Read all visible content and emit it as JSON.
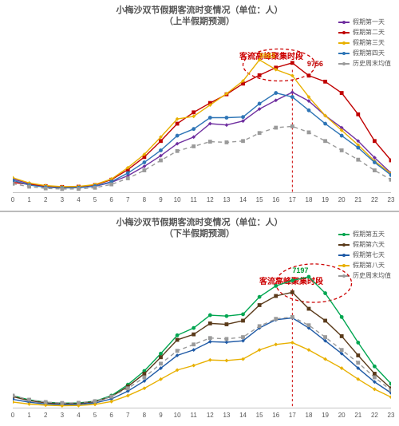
{
  "chart_top": {
    "type": "line",
    "title_line1": "小梅沙双节假期客流时变情况（单位：人）",
    "title_line2": "（上半假期预测）",
    "title_fontsize": 11,
    "title_color": "#555555",
    "background_color": "#ffffff",
    "xaxis": {
      "ticks": [
        0,
        1,
        2,
        3,
        4,
        5,
        6,
        7,
        8,
        9,
        10,
        11,
        12,
        13,
        14,
        15,
        16,
        17,
        18,
        19,
        20,
        21,
        22,
        23
      ],
      "label_fontsize": 8
    },
    "ylim": [
      0,
      11000
    ],
    "peak_annotation": {
      "text": "客流高峰聚集时段",
      "color": "#cc0000",
      "ellipse": {
        "cx_hour": 16.2,
        "cy_value": 9600,
        "rx_hours": 2.2,
        "ry_value": 1200,
        "stroke": "#cc0000",
        "dash": "4,3"
      },
      "vline_hour": 17
    },
    "value_labels": [
      {
        "text": "9983",
        "hour": 15.0,
        "value": 10200,
        "color": "#e8b000"
      },
      {
        "text": "9756",
        "hour": 17.9,
        "value": 9650,
        "color": "#c00000"
      }
    ],
    "series": [
      {
        "name": "假期第一天",
        "color": "#7030a0",
        "marker": "diamond",
        "dash": "none",
        "values": [
          1050,
          700,
          500,
          420,
          420,
          500,
          800,
          1300,
          2000,
          2800,
          3700,
          4200,
          5200,
          5100,
          5400,
          6300,
          6950,
          7550,
          6900,
          5800,
          4900,
          3900,
          2650,
          1500
        ]
      },
      {
        "name": "假期第二天",
        "color": "#c00000",
        "marker": "square",
        "dash": "none",
        "values": [
          800,
          650,
          520,
          460,
          480,
          600,
          1000,
          1750,
          2700,
          3900,
          5200,
          6050,
          6750,
          7400,
          8200,
          8830,
          9400,
          9756,
          8800,
          8350,
          7500,
          5900,
          3900,
          2450
        ]
      },
      {
        "name": "假期第三天",
        "color": "#e8b000",
        "marker": "diamond",
        "dash": "none",
        "values": [
          1150,
          750,
          560,
          480,
          500,
          640,
          1050,
          1900,
          2900,
          4200,
          5550,
          5750,
          6600,
          7450,
          8400,
          9983,
          9250,
          8800,
          7200,
          5800,
          4700,
          3600,
          2400,
          1450
        ]
      },
      {
        "name": "假期第四天",
        "color": "#2e75b6",
        "marker": "circle",
        "dash": "none",
        "values": [
          950,
          600,
          440,
          380,
          400,
          520,
          850,
          1500,
          2300,
          3200,
          4300,
          4800,
          5650,
          5650,
          5700,
          6700,
          7500,
          7200,
          6200,
          5200,
          4300,
          3400,
          2300,
          1350
        ]
      },
      {
        "name": "历史周末均值",
        "color": "#9a9a9a",
        "marker": "square",
        "dash": "5,4",
        "values": [
          700,
          480,
          350,
          300,
          310,
          400,
          650,
          1100,
          1700,
          2450,
          3150,
          3500,
          3850,
          3800,
          3900,
          4500,
          4900,
          5000,
          4550,
          3900,
          3200,
          2500,
          1700,
          1000
        ]
      }
    ],
    "legend": {
      "position": "top-right",
      "fontsize": 8
    },
    "line_width": 1.4,
    "marker_size": 2.4
  },
  "chart_bot": {
    "type": "line",
    "title_line1": "小梅沙双节假期客流时变情况（单位：人）",
    "title_line2": "（下半假期预测）",
    "title_fontsize": 11,
    "title_color": "#555555",
    "background_color": "#ffffff",
    "xaxis": {
      "ticks": [
        0,
        1,
        2,
        3,
        4,
        5,
        6,
        7,
        8,
        9,
        10,
        11,
        12,
        13,
        14,
        15,
        16,
        17,
        18,
        19,
        20,
        21,
        22,
        23
      ],
      "label_fontsize": 8
    },
    "ylim": [
      0,
      8200
    ],
    "peak_annotation": {
      "text": "客流高峰聚集时段",
      "color": "#cc0000",
      "ellipse": {
        "cx_hour": 18.3,
        "cy_value": 6850,
        "rx_hours": 2.3,
        "ry_value": 1050,
        "stroke": "#cc0000",
        "dash": "4,3"
      },
      "vline_hour": 17
    },
    "value_labels": [
      {
        "text": "7197",
        "hour": 17.0,
        "value": 7500,
        "color": "#009933"
      }
    ],
    "series": [
      {
        "name": "假期第五天",
        "color": "#00a651",
        "marker": "circle",
        "dash": "none",
        "values": [
          700,
          470,
          340,
          290,
          300,
          400,
          700,
          1300,
          2050,
          3000,
          4000,
          4400,
          5100,
          5050,
          5150,
          6100,
          6700,
          7000,
          7197,
          6300,
          5000,
          3600,
          2300,
          1350
        ]
      },
      {
        "name": "假期第六天",
        "color": "#5a3a1a",
        "marker": "square",
        "dash": "none",
        "values": [
          650,
          430,
          310,
          260,
          270,
          370,
          650,
          1200,
          1900,
          2800,
          3750,
          4050,
          4650,
          4600,
          4800,
          5650,
          6150,
          6350,
          5450,
          4800,
          3950,
          2900,
          1900,
          1100
        ]
      },
      {
        "name": "假期第七天",
        "color": "#1f5aa6",
        "marker": "diamond",
        "dash": "none",
        "values": [
          500,
          340,
          250,
          210,
          220,
          300,
          520,
          950,
          1500,
          2200,
          2900,
          3200,
          3650,
          3620,
          3700,
          4400,
          4850,
          4950,
          4400,
          3700,
          3000,
          2200,
          1450,
          850
        ]
      },
      {
        "name": "假期第八天",
        "color": "#e8b000",
        "marker": "diamond",
        "dash": "none",
        "values": [
          350,
          240,
          180,
          150,
          160,
          220,
          380,
          700,
          1100,
          1600,
          2100,
          2350,
          2650,
          2620,
          2700,
          3200,
          3500,
          3600,
          3200,
          2700,
          2200,
          1600,
          1050,
          620
        ]
      },
      {
        "name": "历史周末均值",
        "color": "#9a9a9a",
        "marker": "square",
        "dash": "5,4",
        "values": [
          700,
          480,
          350,
          300,
          310,
          400,
          650,
          1100,
          1700,
          2450,
          3150,
          3500,
          3850,
          3800,
          3900,
          4500,
          4900,
          5000,
          4550,
          3900,
          3200,
          2500,
          1700,
          1000
        ]
      }
    ],
    "legend": {
      "position": "top-right",
      "fontsize": 8
    },
    "line_width": 1.4,
    "marker_size": 2.4
  }
}
